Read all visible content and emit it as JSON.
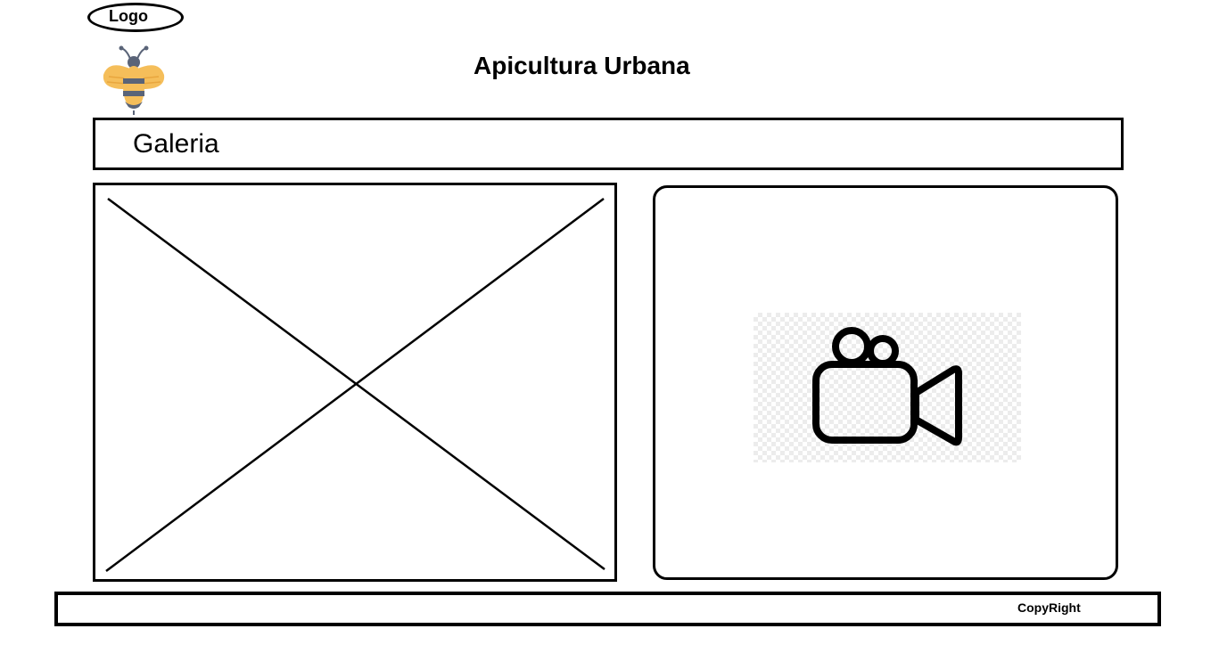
{
  "header": {
    "logo_label": "Logo",
    "title": "Apicultura Urbana",
    "logo_icon": "bee-icon"
  },
  "nav": {
    "label": "Galeria"
  },
  "gallery": {
    "image_icon": "image-placeholder-icon",
    "video_icon": "video-camera-icon"
  },
  "footer": {
    "copyright": "CopyRight"
  },
  "colors": {
    "bee_yellow": "#f5be5a",
    "bee_body": "#5a6478",
    "stroke": "#000000"
  }
}
